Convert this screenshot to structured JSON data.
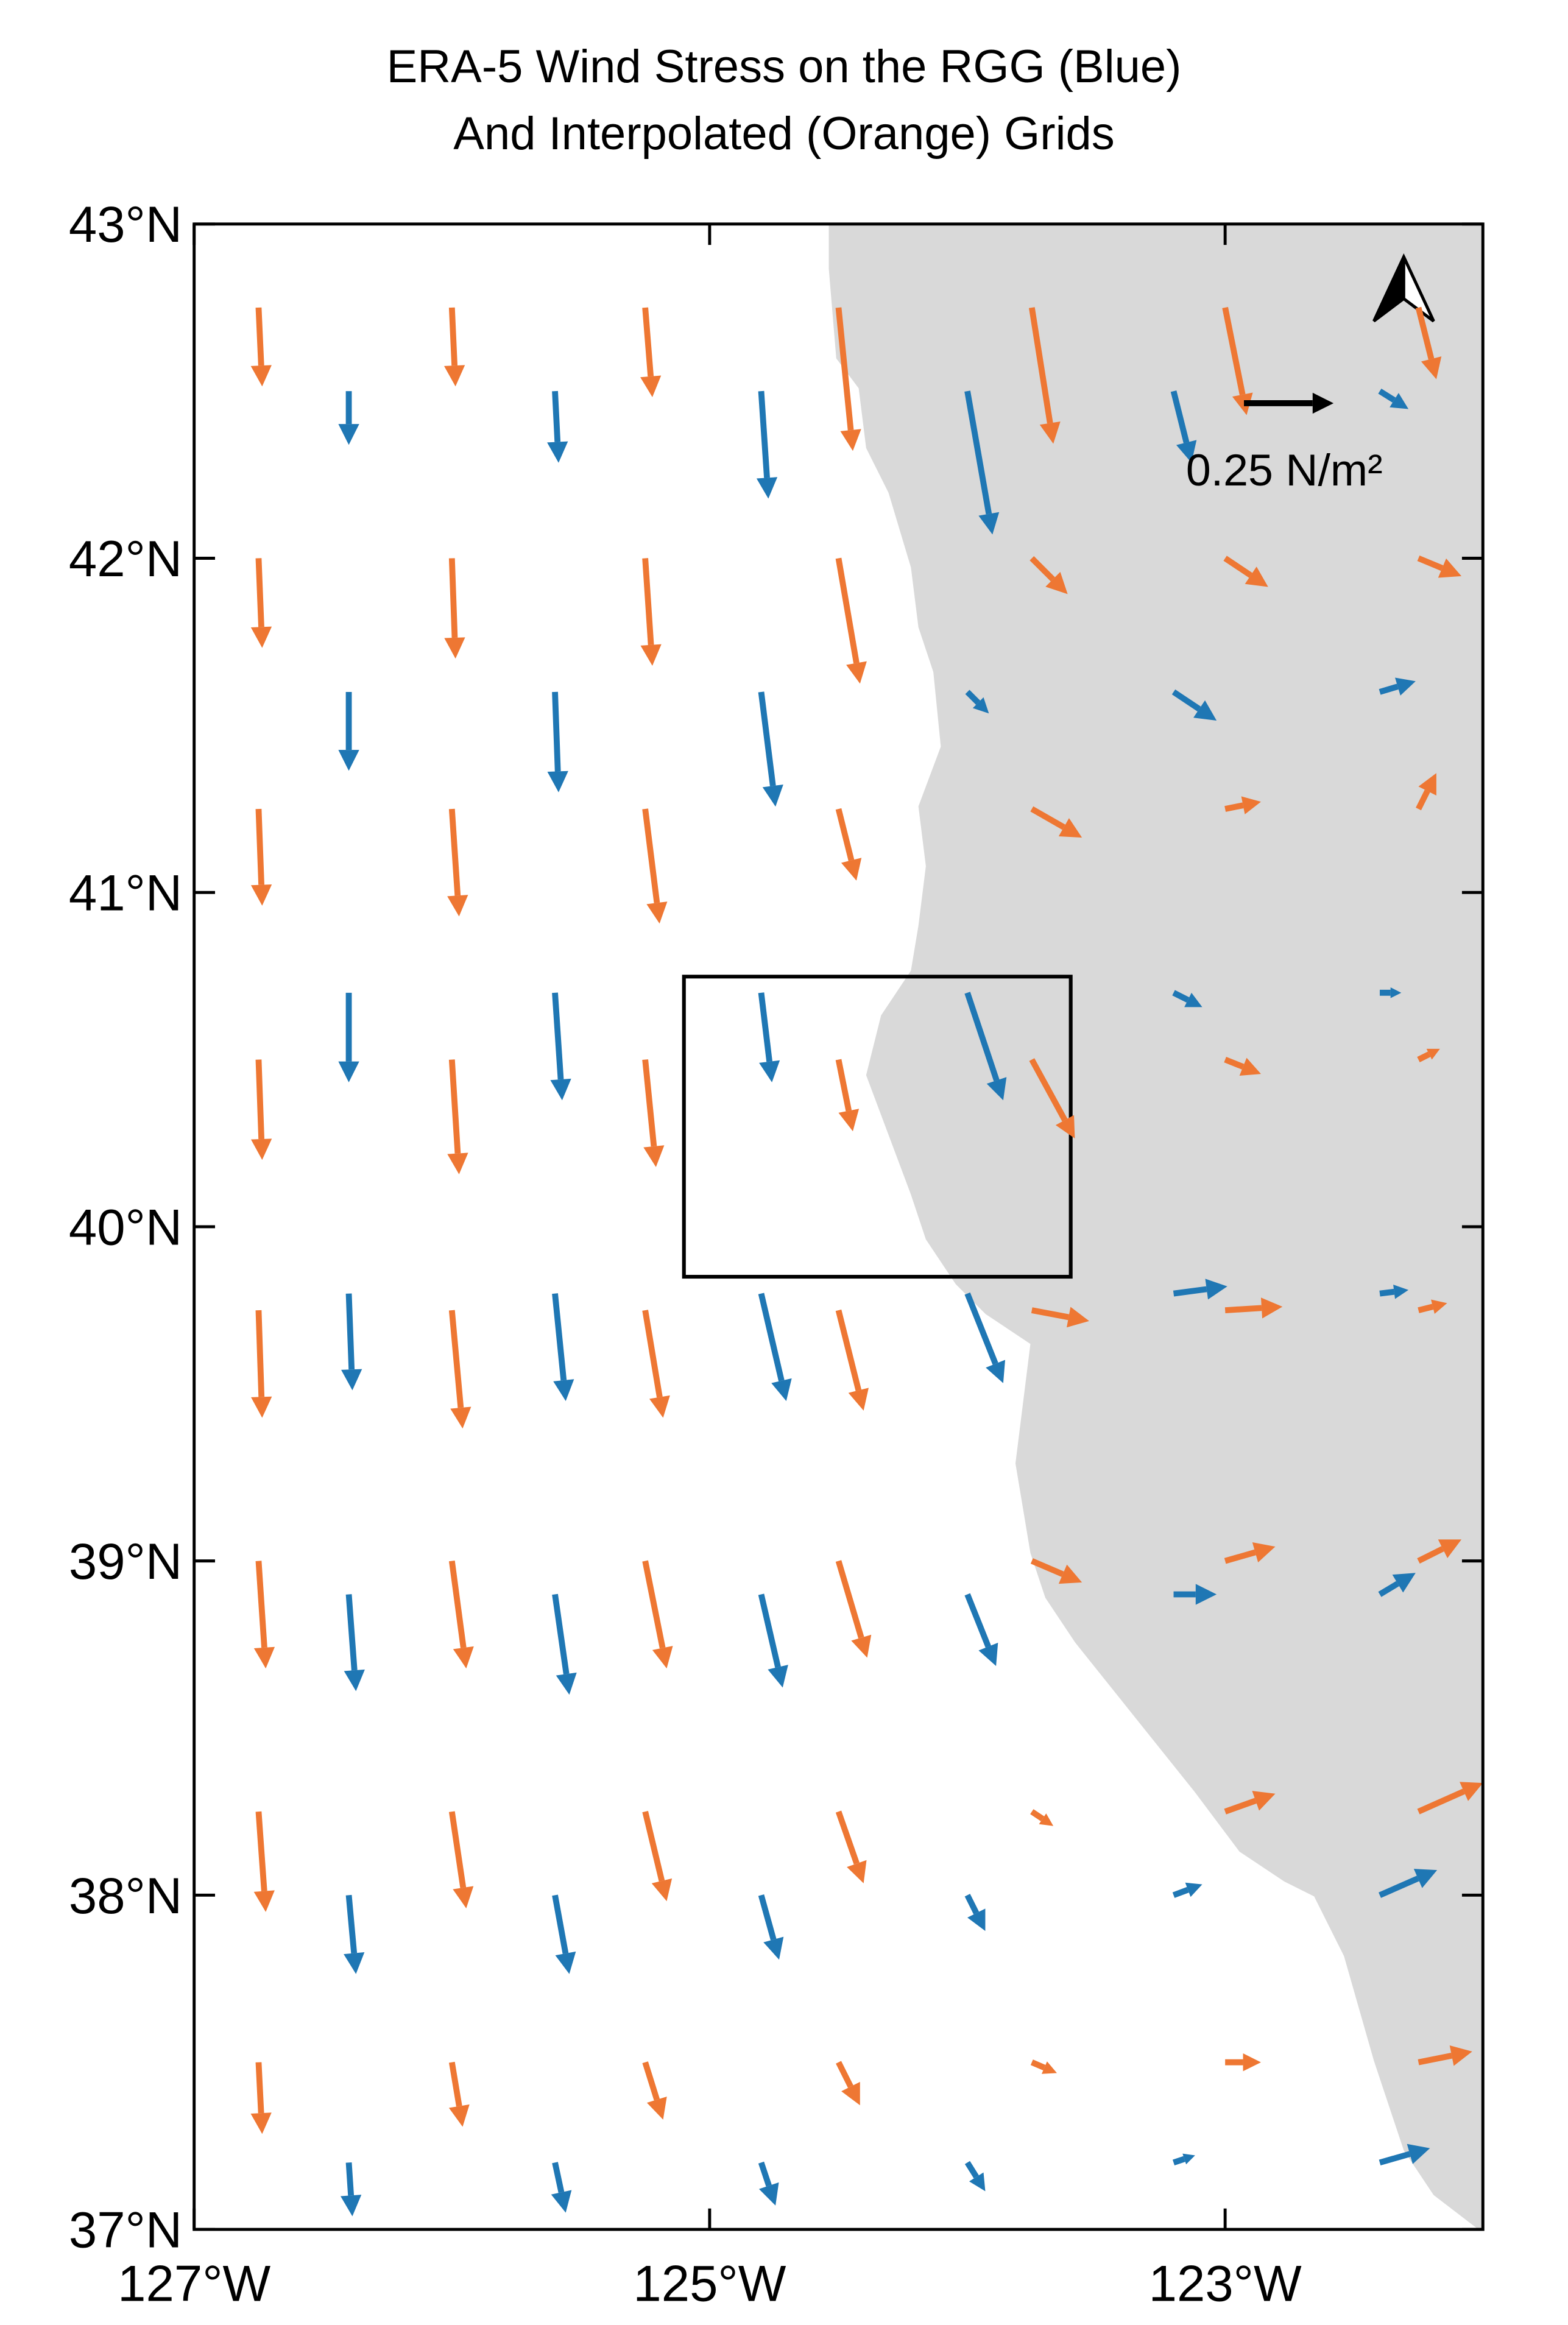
{
  "chart_data": {
    "type": "quiver",
    "title": [
      "ERA-5 Wind Stress on the RGG (Blue)",
      "And Interpolated (Orange) Grids"
    ],
    "xlim": [
      -127,
      -122
    ],
    "ylim": [
      37,
      43
    ],
    "xticks": [
      {
        "value": -127,
        "label": "127°W"
      },
      {
        "value": -125,
        "label": "125°W"
      },
      {
        "value": -123,
        "label": "123°W"
      }
    ],
    "yticks": [
      {
        "value": 37,
        "label": "37°N"
      },
      {
        "value": 38,
        "label": "38°N"
      },
      {
        "value": 39,
        "label": "39°N"
      },
      {
        "value": 40,
        "label": "40°N"
      },
      {
        "value": 41,
        "label": "41°N"
      },
      {
        "value": 42,
        "label": "42°N"
      },
      {
        "value": 43,
        "label": "43°N"
      }
    ],
    "key": {
      "value": 0.25,
      "label": "0.25 N/m²"
    },
    "series": [
      {
        "color": "#ee7733",
        "x": [
          -126.75,
          -126,
          -125.25,
          -124.5,
          -123.75,
          -123,
          -122.25,
          -126.75,
          -126,
          -125.25,
          -124.5,
          -123.75,
          -123,
          -122.25,
          -126.75,
          -126,
          -125.25,
          -124.5,
          -123.75,
          -123,
          -122.25,
          -126.75,
          -126,
          -125.25,
          -124.5,
          -123.75,
          -123,
          -122.25,
          -126.75,
          -126,
          -125.25,
          -124.5,
          -123.75,
          -123,
          -122.25,
          -126.75,
          -126,
          -125.25,
          -124.5,
          -123.75,
          -123,
          -122.25,
          -126.75,
          -126,
          -125.25,
          -124.5,
          -123.75,
          -123,
          -122.25,
          -126.75,
          -126,
          -125.25,
          -124.5,
          -123.75,
          -123,
          -122.25
        ],
        "y": [
          42.75,
          42.75,
          42.75,
          42.75,
          42.75,
          42.75,
          42.75,
          42,
          42,
          42,
          42,
          42,
          42,
          42,
          41.25,
          41.25,
          41.25,
          41.25,
          41.25,
          41.25,
          41.25,
          40.5,
          40.5,
          40.5,
          40.5,
          40.5,
          40.5,
          40.5,
          39.75,
          39.75,
          39.75,
          39.75,
          39.75,
          39.75,
          39.75,
          39,
          39,
          39,
          39,
          39,
          39,
          39,
          38.25,
          38.25,
          38.25,
          38.25,
          38.25,
          38.25,
          38.25,
          37.5,
          37.5,
          37.5,
          37.5,
          37.5,
          37.5,
          37.5
        ],
        "u": [
          0.01,
          0.01,
          0.02,
          0.04,
          0.06,
          0.06,
          0.05,
          0.01,
          0.01,
          0.02,
          0.06,
          0.1,
          0.12,
          0.12,
          0.01,
          0.02,
          0.04,
          0.05,
          0.14,
          0.1,
          0.05,
          0.01,
          0.02,
          0.03,
          0.04,
          0.12,
          0.1,
          0.06,
          0.01,
          0.03,
          0.05,
          0.07,
          0.16,
          0.16,
          0.08,
          0.02,
          0.04,
          0.06,
          0.08,
          0.14,
          0.14,
          0.12,
          0.02,
          0.04,
          0.06,
          0.07,
          0.06,
          0.14,
          0.18,
          0.01,
          0.03,
          0.05,
          0.06,
          0.07,
          0.1,
          0.15
        ],
        "v": [
          -0.22,
          -0.22,
          -0.25,
          -0.4,
          -0.38,
          -0.3,
          -0.2,
          -0.25,
          -0.28,
          -0.3,
          -0.35,
          -0.1,
          -0.08,
          -0.05,
          -0.27,
          -0.3,
          -0.32,
          -0.2,
          -0.08,
          0.02,
          0.1,
          -0.28,
          -0.32,
          -0.3,
          -0.2,
          -0.22,
          -0.04,
          0.03,
          -0.3,
          -0.33,
          -0.3,
          -0.28,
          -0.03,
          0.01,
          0.02,
          -0.3,
          -0.3,
          -0.3,
          -0.27,
          -0.06,
          0.04,
          0.06,
          -0.28,
          -0.27,
          -0.25,
          -0.2,
          -0.04,
          0.05,
          0.08,
          -0.2,
          -0.18,
          -0.16,
          -0.12,
          -0.03,
          0.0,
          0.03
        ]
      },
      {
        "color": "#1f77b4",
        "x": [
          -126.4,
          -125.6,
          -124.8,
          -124,
          -123.2,
          -122.4,
          -126.4,
          -125.6,
          -124.8,
          -124,
          -123.2,
          -122.4,
          -126.4,
          -125.6,
          -124.8,
          -124,
          -123.2,
          -122.4,
          -126.4,
          -125.6,
          -124.8,
          -124,
          -123.2,
          -122.4,
          -126.4,
          -125.6,
          -124.8,
          -124,
          -123.2,
          -122.4,
          -126.4,
          -125.6,
          -124.8,
          -124,
          -123.2,
          -122.4,
          -126.4,
          -125.6,
          -124.8,
          -124,
          -123.2,
          -122.4
        ],
        "y": [
          42.5,
          42.5,
          42.5,
          42.5,
          42.5,
          42.5,
          41.6,
          41.6,
          41.6,
          41.6,
          41.6,
          41.6,
          40.7,
          40.7,
          40.7,
          40.7,
          40.7,
          40.7,
          39.8,
          39.8,
          39.8,
          39.8,
          39.8,
          39.8,
          38.9,
          38.9,
          38.9,
          38.9,
          38.9,
          38.9,
          38,
          38,
          38,
          38,
          38,
          38,
          37.2,
          37.2,
          37.2,
          37.2,
          37.2,
          37.2
        ],
        "u": [
          0.0,
          0.01,
          0.02,
          0.07,
          0.05,
          0.08,
          0.0,
          0.01,
          0.04,
          0.06,
          0.12,
          0.1,
          0.0,
          0.02,
          0.03,
          0.1,
          0.08,
          0.06,
          0.01,
          0.03,
          0.07,
          0.1,
          0.15,
          0.08,
          0.02,
          0.04,
          0.06,
          0.08,
          0.12,
          0.1,
          0.02,
          0.04,
          0.05,
          0.05,
          0.08,
          0.16,
          0.01,
          0.03,
          0.04,
          0.05,
          0.06,
          0.14
        ],
        "v": [
          -0.15,
          -0.2,
          -0.3,
          -0.4,
          -0.2,
          -0.05,
          -0.22,
          -0.28,
          -0.32,
          -0.06,
          -0.08,
          0.03,
          -0.25,
          -0.3,
          -0.25,
          -0.3,
          -0.04,
          0.0,
          -0.27,
          -0.3,
          -0.3,
          -0.25,
          0.02,
          0.01,
          -0.27,
          -0.28,
          -0.26,
          -0.2,
          0.0,
          0.06,
          -0.22,
          -0.22,
          -0.18,
          -0.1,
          0.03,
          0.07,
          -0.15,
          -0.14,
          -0.12,
          -0.08,
          0.02,
          0.04
        ]
      }
    ]
  }
}
